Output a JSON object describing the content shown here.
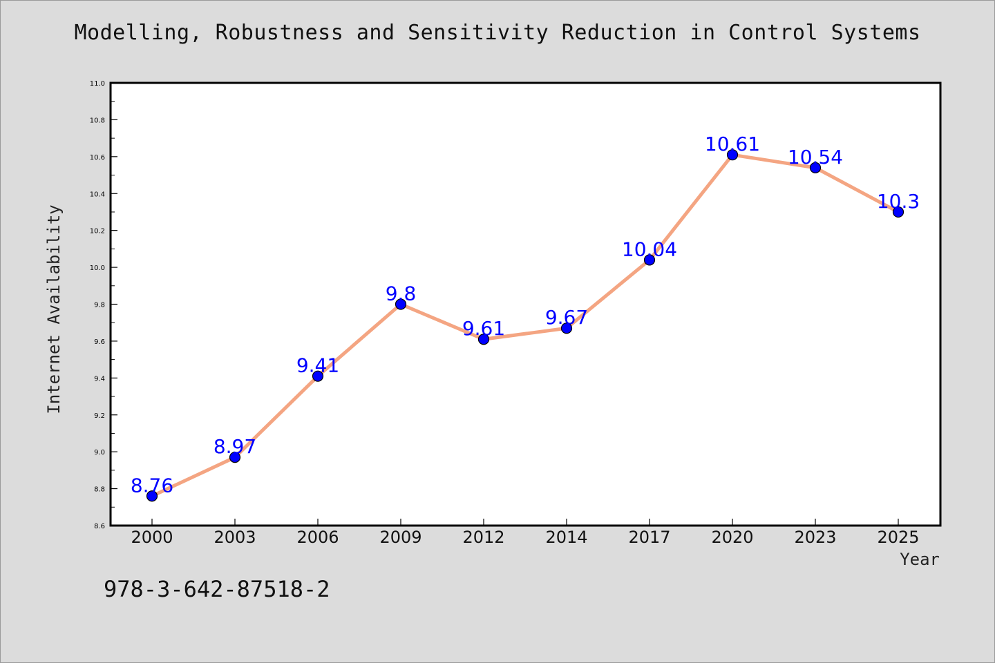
{
  "chart_data": {
    "type": "line",
    "title": "Modelling, Robustness and Sensitivity Reduction in Control Systems",
    "xlabel": "Year",
    "ylabel": "Internet Availability",
    "categories": [
      "2000",
      "2003",
      "2006",
      "2009",
      "2012",
      "2014",
      "2017",
      "2020",
      "2023",
      "2025"
    ],
    "series": [
      {
        "values": [
          8.76,
          8.97,
          9.41,
          9.8,
          9.61,
          9.67,
          10.04,
          10.61,
          10.54,
          10.3
        ],
        "data_labels": [
          "8.76",
          "8.97",
          "9.41",
          "9.8",
          "9.61",
          "9.67",
          "10.04",
          "10.61",
          "10.54",
          "10.3"
        ]
      }
    ],
    "ylim": [
      8.6,
      11.0
    ],
    "yticks": [
      "8.6",
      "8.8",
      "9.0",
      "9.2",
      "9.4",
      "9.6",
      "9.8",
      "10.0",
      "10.2",
      "10.4",
      "10.6",
      "10.8",
      "11.0"
    ],
    "grid": false,
    "legend": "none",
    "colors": {
      "line": "#f4a582",
      "marker": "#0000ff",
      "label": "#0000ff",
      "background": "#dcdcdc",
      "plot_background": "#ffffff"
    }
  },
  "footer_text": "978-3-642-87518-2"
}
